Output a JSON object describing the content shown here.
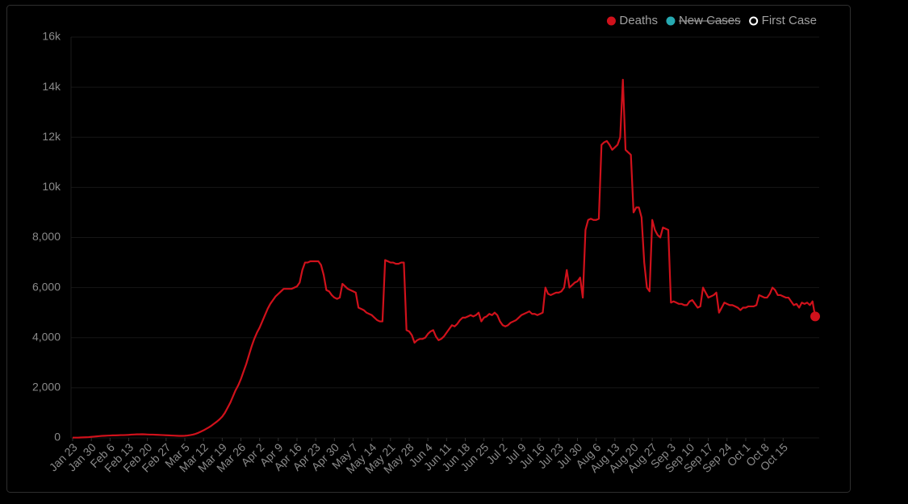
{
  "chart_data": {
    "type": "line",
    "categories": [
      "Jan 23",
      null,
      null,
      null,
      null,
      null,
      null,
      "Jan 30",
      null,
      null,
      null,
      null,
      null,
      null,
      "Feb 6",
      null,
      null,
      null,
      null,
      null,
      null,
      "Feb 13",
      null,
      null,
      null,
      null,
      null,
      null,
      "Feb 20",
      null,
      null,
      null,
      null,
      null,
      null,
      "Feb 27",
      null,
      null,
      null,
      null,
      null,
      null,
      "Mar 5",
      null,
      null,
      null,
      null,
      null,
      null,
      "Mar 12",
      null,
      null,
      null,
      null,
      null,
      null,
      "Mar 19",
      null,
      null,
      null,
      null,
      null,
      null,
      "Mar 26",
      null,
      null,
      null,
      null,
      null,
      null,
      "Apr 2",
      null,
      null,
      null,
      null,
      null,
      null,
      "Apr 9",
      null,
      null,
      null,
      null,
      null,
      null,
      "Apr 16",
      null,
      null,
      null,
      null,
      null,
      null,
      "Apr 23",
      null,
      null,
      null,
      null,
      null,
      null,
      "Apr 30",
      null,
      null,
      null,
      null,
      null,
      null,
      "May 7",
      null,
      null,
      null,
      null,
      null,
      null,
      "May 14",
      null,
      null,
      null,
      null,
      null,
      null,
      "May 21",
      null,
      null,
      null,
      null,
      null,
      null,
      "May 28",
      null,
      null,
      null,
      null,
      null,
      null,
      "Jun 4",
      null,
      null,
      null,
      null,
      null,
      null,
      "Jun 11",
      null,
      null,
      null,
      null,
      null,
      null,
      "Jun 18",
      null,
      null,
      null,
      null,
      null,
      null,
      "Jun 25",
      null,
      null,
      null,
      null,
      null,
      null,
      "Jul 2",
      null,
      null,
      null,
      null,
      null,
      null,
      "Jul 9",
      null,
      null,
      null,
      null,
      null,
      null,
      "Jul 16",
      null,
      null,
      null,
      null,
      null,
      null,
      "Jul 23",
      null,
      null,
      null,
      null,
      null,
      null,
      "Jul 30",
      null,
      null,
      null,
      null,
      null,
      null,
      "Aug 6",
      null,
      null,
      null,
      null,
      null,
      null,
      "Aug 13",
      null,
      null,
      null,
      null,
      null,
      null,
      "Aug 20",
      null,
      null,
      null,
      null,
      null,
      null,
      "Aug 27",
      null,
      null,
      null,
      null,
      null,
      null,
      "Sep 3",
      null,
      null,
      null,
      null,
      null,
      null,
      "Sep 10",
      null,
      null,
      null,
      null,
      null,
      null,
      "Sep 17",
      null,
      null,
      null,
      null,
      null,
      null,
      "Sep 24",
      null,
      null,
      null,
      null,
      null,
      null,
      "Oct 1",
      null,
      null,
      null,
      null,
      null,
      null,
      "Oct 8",
      null,
      null,
      null,
      null,
      null,
      null,
      "Oct 15",
      null,
      null,
      null,
      null,
      null,
      null,
      null,
      null,
      null,
      null,
      null,
      null
    ],
    "series": [
      {
        "name": "Deaths",
        "color": "#d0111b",
        "values": [
          10,
          10,
          10,
          15,
          20,
          25,
          30,
          40,
          50,
          60,
          70,
          80,
          85,
          90,
          95,
          100,
          100,
          105,
          110,
          110,
          115,
          120,
          130,
          135,
          140,
          140,
          145,
          140,
          135,
          130,
          130,
          125,
          120,
          115,
          110,
          105,
          100,
          95,
          90,
          85,
          80,
          80,
          85,
          95,
          110,
          130,
          160,
          200,
          250,
          300,
          360,
          420,
          490,
          570,
          650,
          740,
          850,
          1000,
          1200,
          1400,
          1650,
          1900,
          2100,
          2350,
          2650,
          2950,
          3300,
          3650,
          3950,
          4200,
          4400,
          4650,
          4900,
          5150,
          5350,
          5500,
          5650,
          5750,
          5850,
          5950,
          5950,
          5950,
          5950,
          6000,
          6050,
          6200,
          6700,
          7000,
          7000,
          7050,
          7050,
          7050,
          7050,
          6900,
          6500,
          5900,
          5850,
          5700,
          5600,
          5550,
          5600,
          6150,
          6050,
          5950,
          5900,
          5850,
          5800,
          5200,
          5150,
          5100,
          5000,
          4950,
          4900,
          4800,
          4700,
          4650,
          4650,
          7100,
          7050,
          7000,
          7000,
          6950,
          6950,
          7000,
          7000,
          4300,
          4250,
          4100,
          3800,
          3900,
          3950,
          3950,
          4000,
          4150,
          4250,
          4300,
          4050,
          3900,
          3950,
          4050,
          4200,
          4350,
          4500,
          4450,
          4550,
          4700,
          4800,
          4800,
          4850,
          4900,
          4850,
          4900,
          5000,
          4650,
          4800,
          4850,
          4950,
          4900,
          5000,
          4900,
          4650,
          4500,
          4450,
          4500,
          4600,
          4650,
          4700,
          4800,
          4900,
          4950,
          5000,
          5050,
          4950,
          4950,
          4900,
          4950,
          5000,
          6000,
          5750,
          5700,
          5750,
          5800,
          5800,
          5850,
          6000,
          6700,
          6000,
          6100,
          6200,
          6250,
          6400,
          5600,
          8300,
          8700,
          8750,
          8700,
          8700,
          8750,
          11700,
          11800,
          11850,
          11700,
          11500,
          11600,
          11700,
          12000,
          14300,
          11500,
          11400,
          11300,
          9000,
          9200,
          9200,
          8800,
          7000,
          6000,
          5850,
          8700,
          8300,
          8100,
          8000,
          8400,
          8350,
          8300,
          5400,
          5450,
          5400,
          5350,
          5350,
          5300,
          5300,
          5450,
          5500,
          5350,
          5200,
          5250,
          6000,
          5800,
          5600,
          5650,
          5700,
          5800,
          5000,
          5200,
          5400,
          5350,
          5300,
          5300,
          5250,
          5200,
          5100,
          5200,
          5200,
          5250,
          5250,
          5250,
          5300,
          5700,
          5650,
          5600,
          5600,
          5750,
          6000,
          5900,
          5700,
          5700,
          5650,
          5600,
          5600,
          5450,
          5300,
          5350,
          5200,
          5400,
          5350,
          5400,
          5300,
          5450,
          4850
        ]
      }
    ],
    "legend": [
      {
        "name": "Deaths",
        "color": "#d0111b"
      },
      {
        "name": "New Cases",
        "color": "#26a9b1",
        "hidden": true
      },
      {
        "name": "First Case",
        "color": "#ffffff",
        "marker": "ring"
      }
    ],
    "ylim": [
      0,
      16000
    ],
    "yticks": [
      0,
      {
        "value": 2000,
        "label": "2,000"
      },
      {
        "value": 4000,
        "label": "4,000"
      },
      {
        "value": 6000,
        "label": "6,000"
      },
      {
        "value": 8000,
        "label": "8,000"
      },
      {
        "value": 10000,
        "label": "10k"
      },
      {
        "value": 12000,
        "label": "12k"
      },
      {
        "value": 14000,
        "label": "14k"
      },
      {
        "value": 16000,
        "label": "16k"
      }
    ],
    "grid": true,
    "end_marker": true
  }
}
